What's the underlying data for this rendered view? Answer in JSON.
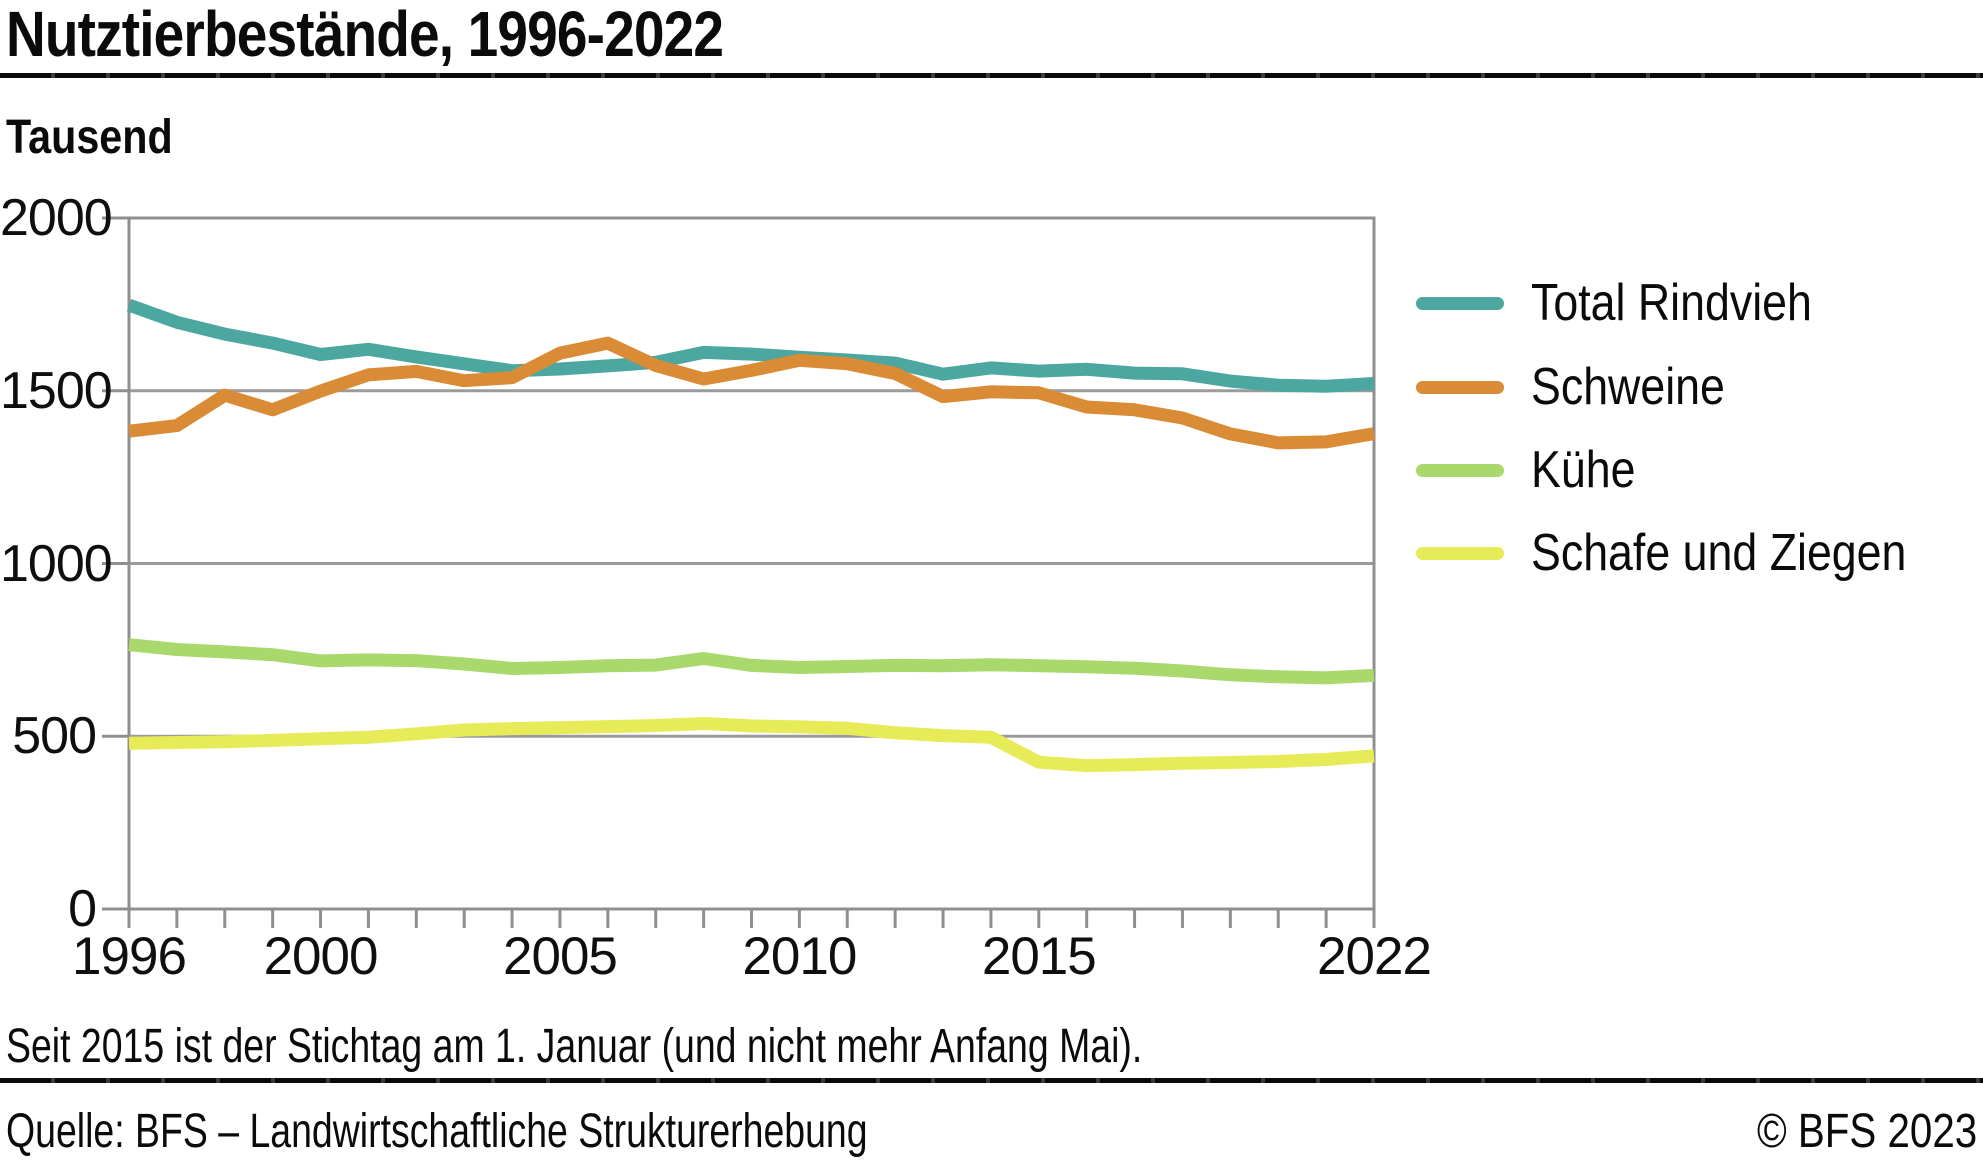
{
  "header": {
    "title": "Nutztierbestände, 1996-2022"
  },
  "subtitle": "Tausend",
  "footnote": "Seit 2015 ist der Stichtag am 1. Januar (und nicht mehr Anfang Mai).",
  "footer": {
    "source": "Quelle: BFS – Landwirtschaftliche Strukturerhebung",
    "copyright": "© BFS 2023"
  },
  "chart_data": {
    "type": "line",
    "title": "Nutztierbestände, 1996-2022",
    "ylabel": "Tausend",
    "xlabel": "",
    "ylim": [
      0,
      2000
    ],
    "grid": true,
    "legend_position": "right",
    "x": [
      1996,
      1997,
      1998,
      1999,
      2000,
      2001,
      2002,
      2003,
      2004,
      2005,
      2006,
      2007,
      2008,
      2009,
      2010,
      2011,
      2012,
      2013,
      2014,
      2015,
      2016,
      2017,
      2018,
      2019,
      2020,
      2021,
      2022
    ],
    "x_tick_labels": [
      "1996",
      "2000",
      "2005",
      "2010",
      "2015",
      "2022"
    ],
    "x_tick_values": [
      1996,
      2000,
      2005,
      2010,
      2015,
      2022
    ],
    "y_ticks": [
      0,
      500,
      1000,
      1500,
      2000
    ],
    "series": [
      {
        "name": "Total Rindvieh",
        "color": "#4ba79f",
        "values": [
          1748,
          1698,
          1664,
          1638,
          1605,
          1620,
          1598,
          1578,
          1558,
          1563,
          1572,
          1582,
          1611,
          1606,
          1597,
          1589,
          1580,
          1548,
          1566,
          1557,
          1562,
          1551,
          1549,
          1528,
          1516,
          1513,
          1521
        ]
      },
      {
        "name": "Schweine",
        "color": "#da8b35",
        "values": [
          1383,
          1399,
          1487,
          1445,
          1499,
          1546,
          1556,
          1529,
          1538,
          1609,
          1638,
          1573,
          1534,
          1559,
          1588,
          1578,
          1550,
          1483,
          1497,
          1494,
          1453,
          1445,
          1421,
          1375,
          1349,
          1352,
          1376
        ]
      },
      {
        "name": "Kühe",
        "color": "#a9d86c",
        "values": [
          765,
          751,
          744,
          736,
          718,
          721,
          719,
          709,
          696,
          699,
          704,
          706,
          725,
          705,
          699,
          702,
          705,
          704,
          707,
          704,
          701,
          697,
          689,
          678,
          672,
          669,
          676
        ]
      },
      {
        "name": "Schafe und Ziegen",
        "color": "#e6eb57",
        "values": [
          480,
          482,
          484,
          488,
          493,
          497,
          507,
          518,
          522,
          525,
          528,
          531,
          537,
          530,
          527,
          523,
          510,
          502,
          497,
          425,
          415,
          418,
          422,
          424,
          427,
          433,
          443
        ]
      }
    ],
    "axis_color": "#8f8f8f",
    "gridline_color": "#9b9b9b"
  }
}
